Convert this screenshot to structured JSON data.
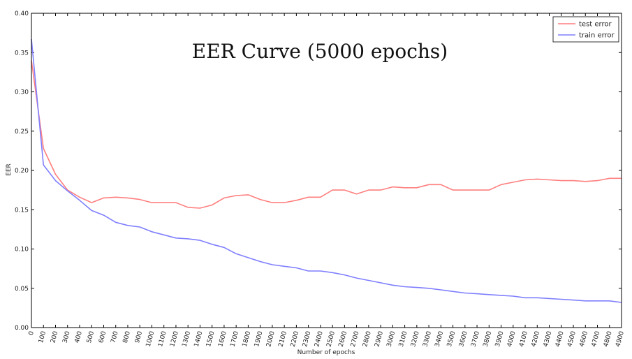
{
  "chart_data": {
    "type": "line",
    "title": "EER Curve (5000 epochs)",
    "xlabel": "Number of epochs",
    "ylabel": "EER",
    "xlim": [
      0,
      4900
    ],
    "ylim": [
      0,
      0.4
    ],
    "x_ticks": [
      0,
      100,
      200,
      300,
      400,
      500,
      600,
      700,
      800,
      900,
      1000,
      1100,
      1200,
      1300,
      1400,
      1500,
      1600,
      1700,
      1800,
      1900,
      2000,
      2100,
      2200,
      2300,
      2400,
      2500,
      2600,
      2700,
      2800,
      2900,
      3000,
      3100,
      3200,
      3300,
      3400,
      3500,
      3600,
      3700,
      3800,
      3900,
      4000,
      4100,
      4200,
      4300,
      4400,
      4500,
      4600,
      4700,
      4800,
      4900
    ],
    "y_ticks": [
      "0.00",
      "0.05",
      "0.10",
      "0.15",
      "0.20",
      "0.25",
      "0.30",
      "0.35",
      "0.40"
    ],
    "legend_position": "top-right",
    "grid": false,
    "x": [
      0,
      100,
      200,
      300,
      400,
      500,
      600,
      700,
      800,
      900,
      1000,
      1100,
      1200,
      1300,
      1400,
      1500,
      1600,
      1700,
      1800,
      1900,
      2000,
      2100,
      2200,
      2300,
      2400,
      2500,
      2600,
      2700,
      2800,
      2900,
      3000,
      3100,
      3200,
      3300,
      3400,
      3500,
      3600,
      3700,
      3800,
      3900,
      4000,
      4100,
      4200,
      4300,
      4400,
      4500,
      4600,
      4700,
      4800,
      4900
    ],
    "series": [
      {
        "name": "test error",
        "color": "#ff7f7f",
        "values": [
          0.34,
          0.228,
          0.195,
          0.175,
          0.166,
          0.159,
          0.165,
          0.166,
          0.165,
          0.163,
          0.159,
          0.159,
          0.159,
          0.153,
          0.152,
          0.156,
          0.165,
          0.168,
          0.169,
          0.163,
          0.159,
          0.159,
          0.162,
          0.166,
          0.166,
          0.175,
          0.175,
          0.17,
          0.175,
          0.175,
          0.179,
          0.178,
          0.178,
          0.182,
          0.182,
          0.175,
          0.175,
          0.175,
          0.175,
          0.182,
          0.185,
          0.188,
          0.189,
          0.188,
          0.187,
          0.187,
          0.186,
          0.187,
          0.19,
          0.19
        ]
      },
      {
        "name": "train error",
        "color": "#7f7fff",
        "values": [
          0.367,
          0.207,
          0.187,
          0.174,
          0.162,
          0.149,
          0.143,
          0.134,
          0.13,
          0.128,
          0.122,
          0.118,
          0.114,
          0.113,
          0.111,
          0.106,
          0.102,
          0.094,
          0.089,
          0.084,
          0.08,
          0.078,
          0.076,
          0.072,
          0.072,
          0.07,
          0.067,
          0.063,
          0.06,
          0.057,
          0.054,
          0.052,
          0.051,
          0.05,
          0.048,
          0.046,
          0.044,
          0.043,
          0.042,
          0.041,
          0.04,
          0.038,
          0.038,
          0.037,
          0.036,
          0.035,
          0.034,
          0.034,
          0.034,
          0.032
        ]
      }
    ]
  }
}
